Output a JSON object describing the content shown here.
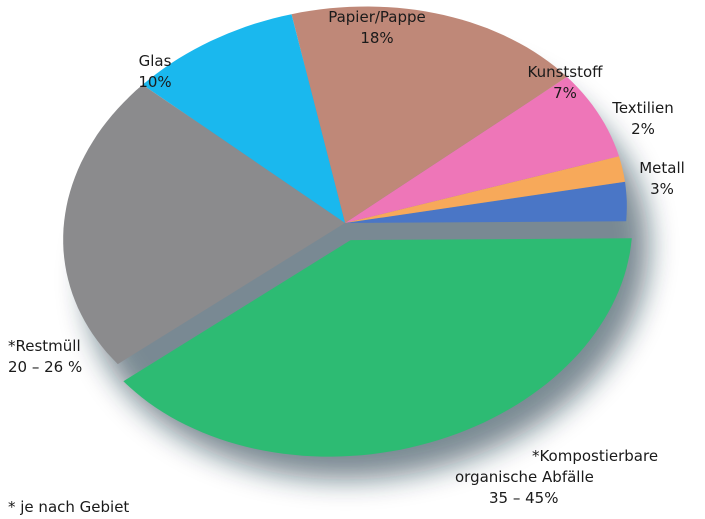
{
  "chart_data": {
    "type": "pie",
    "title": "",
    "slices": [
      {
        "label": "Metall",
        "value_text": "3%",
        "value": 3,
        "color": "#4a76c6"
      },
      {
        "label": "Textilien",
        "value_text": "2%",
        "value": 2,
        "color": "#f7a95a"
      },
      {
        "label": "Kunststoff",
        "value_text": "7%",
        "value": 7,
        "color": "#ee76b8"
      },
      {
        "label": "Papier/Pappe",
        "value_text": "18%",
        "value": 18,
        "color": "#bf8878"
      },
      {
        "label": "Glas",
        "value_text": "10%",
        "value": 10,
        "color": "#1ab8ee"
      },
      {
        "label": "*Restmüll",
        "value_text": "20 – 26 %",
        "value": 23,
        "color": "#8b8b8d"
      },
      {
        "label": "*Kompostierbare organische Abfälle",
        "value_text": "35 – 45%",
        "value": 40,
        "color": "#2dbb73"
      }
    ],
    "footnote": "* je nach Gebiet",
    "legend": "none"
  },
  "labels": {
    "metall": {
      "name": "Metall",
      "value": "3%"
    },
    "textilien": {
      "name": "Textilien",
      "value": "2%"
    },
    "kunststoff": {
      "name": "Kunststoff",
      "value": "7%"
    },
    "papier": {
      "name": "Papier/Pappe",
      "value": "18%"
    },
    "glas": {
      "name": "Glas",
      "value": "10%"
    },
    "restmuell": {
      "name": "*Restmüll",
      "value": "20 – 26 %"
    },
    "kompost": {
      "name_line1": "*Kompostierbare",
      "name_line2": "organische Abfälle",
      "value": "35 – 45%"
    }
  }
}
